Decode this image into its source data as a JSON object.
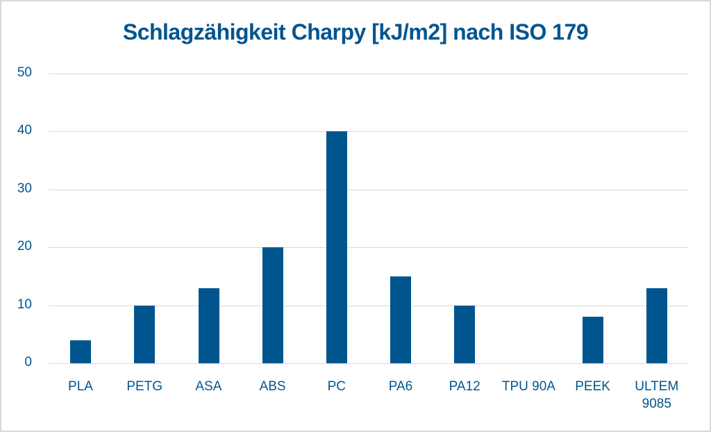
{
  "chart_data": {
    "type": "bar",
    "title": "Schlagzähigkeit Charpy [kJ/m2] nach ISO 179",
    "xlabel": "",
    "ylabel": "",
    "categories": [
      "PLA",
      "PETG",
      "ASA",
      "ABS",
      "PC",
      "PA6",
      "PA12",
      "TPU 90A",
      "PEEK",
      "ULTEM 9085"
    ],
    "category_lines": [
      [
        "PLA"
      ],
      [
        "PETG"
      ],
      [
        "ASA"
      ],
      [
        "ABS"
      ],
      [
        "PC"
      ],
      [
        "PA6"
      ],
      [
        "PA12"
      ],
      [
        "TPU 90A"
      ],
      [
        "PEEK"
      ],
      [
        "ULTEM",
        "9085"
      ]
    ],
    "values": [
      4,
      10,
      13,
      20,
      40,
      15,
      10,
      0,
      8,
      13
    ],
    "ylim": [
      0,
      50
    ],
    "yticks": [
      0,
      10,
      20,
      30,
      40,
      50
    ],
    "grid": true,
    "legend": null,
    "bar_color": "#00558f",
    "text_color": "#00558f",
    "grid_color": "#d9d9d9"
  }
}
